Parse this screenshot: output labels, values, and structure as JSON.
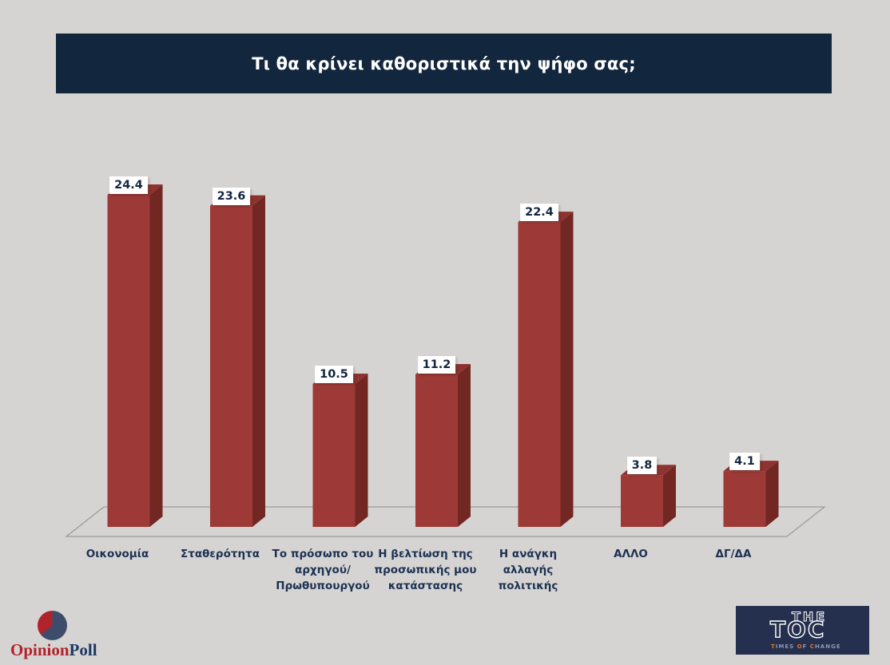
{
  "title": "Τι θα κρίνει καθοριστικά την ψήφο σας;",
  "chart_data": {
    "type": "bar",
    "style": "3d-column",
    "title": "Τι θα κρίνει καθοριστικά την ψήφο σας;",
    "categories": [
      "Οικονομία",
      "Σταθερότητα",
      "Το πρόσωπο του αρχηγού/ Πρωθυπουργού",
      "Η βελτίωση της προσωπικής μου κατάστασης",
      "Η ανάγκη αλλαγής πολιτικής",
      "ΑΛΛΟ",
      "ΔΓ/ΔΑ"
    ],
    "category_lines": [
      [
        "Οικονομία"
      ],
      [
        "Σταθερότητα"
      ],
      [
        "Το πρόσωπο του",
        "αρχηγού/",
        "Πρωθυπουργού"
      ],
      [
        "Η βελτίωση της",
        "προσωπικής μου",
        "κατάστασης"
      ],
      [
        "Η ανάγκη",
        "αλλαγής",
        "πολιτικής"
      ],
      [
        "ΑΛΛΟ"
      ],
      [
        "ΔΓ/ΔΑ"
      ]
    ],
    "values": [
      24.4,
      23.6,
      10.5,
      11.2,
      22.4,
      3.8,
      4.1
    ],
    "value_labels": [
      "24.4",
      "23.6",
      "10.5",
      "11.2",
      "22.4",
      "3.8",
      "4.1"
    ],
    "xlabel": "",
    "ylabel": "",
    "ylim": [
      0,
      26
    ],
    "grid": false,
    "legend": false,
    "colors": {
      "background": "#d6d4d2",
      "title_bg": "#12263e",
      "title_text": "#ffffff",
      "bar_front": "#9d3a37",
      "bar_top": "#8e332f",
      "bar_side": "#732723",
      "floor_line": "#9b9b99",
      "value_text": "#13263f",
      "category_text": "#1c3153"
    }
  },
  "logos": {
    "opinionpoll": {
      "part1": "Opinion",
      "part2": "Poll",
      "pie_red": "#b1232a",
      "pie_navy": "#3e4c6b"
    },
    "thetoc": {
      "line1": "THE",
      "line2": "TOC",
      "tagline": "TIMES OF CHANGE",
      "bg": "#252f4e",
      "accent": "#e0762a"
    }
  }
}
